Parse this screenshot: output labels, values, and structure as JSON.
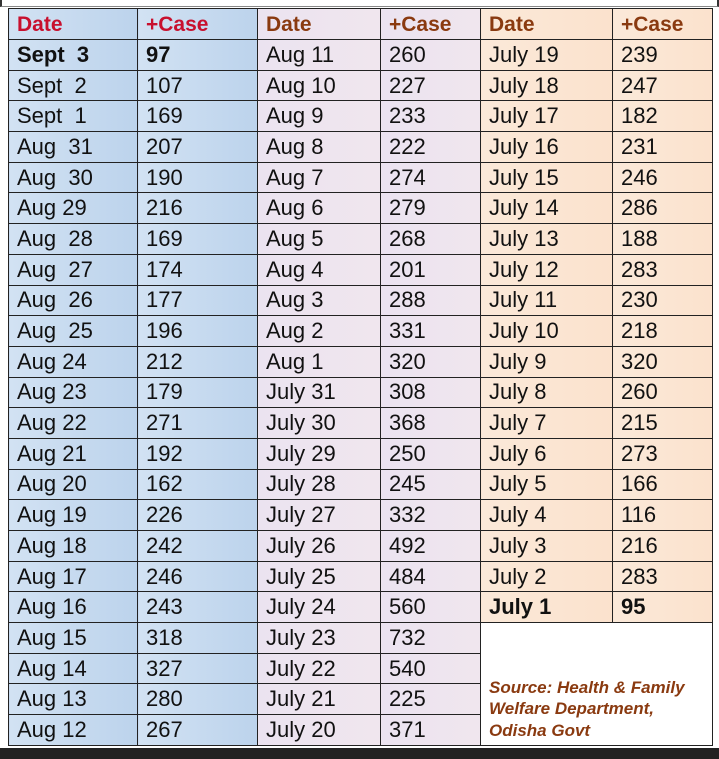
{
  "headers": [
    "Date",
    "+Case",
    "Date",
    "+Case",
    "Date",
    "+Case"
  ],
  "colors": {
    "header_first": "#c8102e",
    "header_other": "#8a3a10",
    "blue_bg": "#c5d9ef",
    "lavender_bg": "#ece4ef",
    "peach_bg": "#fbe5d2"
  },
  "group1": [
    [
      "Sept  3",
      "97"
    ],
    [
      "Sept  2",
      "107"
    ],
    [
      "Sept  1",
      "169"
    ],
    [
      "Aug  31",
      "207"
    ],
    [
      "Aug  30",
      "190"
    ],
    [
      "Aug 29",
      "216"
    ],
    [
      "Aug  28",
      "169"
    ],
    [
      "Aug  27",
      "174"
    ],
    [
      "Aug  26",
      "177"
    ],
    [
      "Aug  25",
      "196"
    ],
    [
      "Aug 24",
      "212"
    ],
    [
      "Aug 23",
      "179"
    ],
    [
      "Aug 22",
      "271"
    ],
    [
      "Aug 21",
      "192"
    ],
    [
      "Aug 20",
      "162"
    ],
    [
      "Aug 19",
      "226"
    ],
    [
      "Aug 18",
      "242"
    ],
    [
      "Aug 17",
      "246"
    ],
    [
      "Aug 16",
      "243"
    ],
    [
      "Aug 15",
      "318"
    ],
    [
      "Aug 14",
      "327"
    ],
    [
      "Aug 13",
      "280"
    ],
    [
      "Aug 12",
      "267"
    ]
  ],
  "group2": [
    [
      "Aug 11",
      "260"
    ],
    [
      "Aug 10",
      "227"
    ],
    [
      "Aug 9",
      "233"
    ],
    [
      "Aug 8",
      "222"
    ],
    [
      "Aug 7",
      "274"
    ],
    [
      "Aug 6",
      "279"
    ],
    [
      "Aug 5",
      "268"
    ],
    [
      "Aug 4",
      "201"
    ],
    [
      "Aug 3",
      "288"
    ],
    [
      "Aug 2",
      "331"
    ],
    [
      "Aug 1",
      "320"
    ],
    [
      "July 31",
      "308"
    ],
    [
      "July 30",
      "368"
    ],
    [
      "July 29",
      "250"
    ],
    [
      "July 28",
      "245"
    ],
    [
      "July 27",
      "332"
    ],
    [
      "July 26",
      "492"
    ],
    [
      "July 25",
      "484"
    ],
    [
      "July 24",
      "560"
    ],
    [
      "July 23",
      "732"
    ],
    [
      "July 22",
      "540"
    ],
    [
      "July 21",
      "225"
    ],
    [
      "July 20",
      "371"
    ]
  ],
  "group3": [
    [
      "July 19",
      "239"
    ],
    [
      "July 18",
      "247"
    ],
    [
      "July 17",
      "182"
    ],
    [
      "July 16",
      "231"
    ],
    [
      "July 15",
      "246"
    ],
    [
      "July 14",
      "286"
    ],
    [
      "July 13",
      "188"
    ],
    [
      "July 12",
      "283"
    ],
    [
      "July 11",
      "230"
    ],
    [
      "July 10",
      "218"
    ],
    [
      "July 9",
      "320"
    ],
    [
      "July 8",
      "260"
    ],
    [
      "July 7",
      "215"
    ],
    [
      "July 6",
      "273"
    ],
    [
      "July 5",
      "166"
    ],
    [
      "July 4",
      "116"
    ],
    [
      "July 3",
      "216"
    ],
    [
      "July 2",
      "283"
    ],
    [
      "July 1",
      "95"
    ]
  ],
  "bold_rows": {
    "group1": 0,
    "group3": 18
  },
  "source": "Source: Health & Family Welfare Department,  Odisha Govt"
}
